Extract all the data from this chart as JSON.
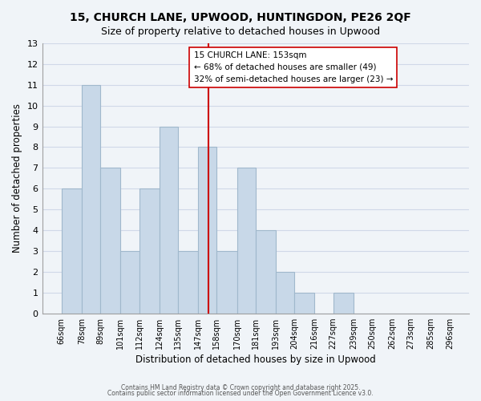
{
  "title1": "15, CHURCH LANE, UPWOOD, HUNTINGDON, PE26 2QF",
  "title2": "Size of property relative to detached houses in Upwood",
  "xlabel": "Distribution of detached houses by size in Upwood",
  "ylabel": "Number of detached properties",
  "bin_edges": [
    66,
    78,
    89,
    101,
    112,
    124,
    135,
    147,
    158,
    170,
    181,
    193,
    204,
    216,
    227,
    239,
    250,
    262,
    273,
    285,
    296
  ],
  "bar_heights": [
    6,
    11,
    7,
    3,
    6,
    9,
    3,
    8,
    3,
    7,
    4,
    2,
    1,
    0,
    1,
    0,
    0,
    0,
    0,
    0
  ],
  "bar_color": "#c8d8e8",
  "bar_edgecolor": "#a0b8cc",
  "grid_color": "#d0d8e8",
  "vline_x": 153,
  "vline_color": "#cc0000",
  "annotation_text": "15 CHURCH LANE: 153sqm\n← 68% of detached houses are smaller (49)\n32% of semi-detached houses are larger (23) →",
  "ylim": [
    0,
    13
  ],
  "yticks": [
    0,
    1,
    2,
    3,
    4,
    5,
    6,
    7,
    8,
    9,
    10,
    11,
    12,
    13
  ],
  "footer1": "Contains HM Land Registry data © Crown copyright and database right 2025.",
  "footer2": "Contains public sector information licensed under the Open Government Licence v3.0.",
  "bg_color": "#f0f4f8"
}
